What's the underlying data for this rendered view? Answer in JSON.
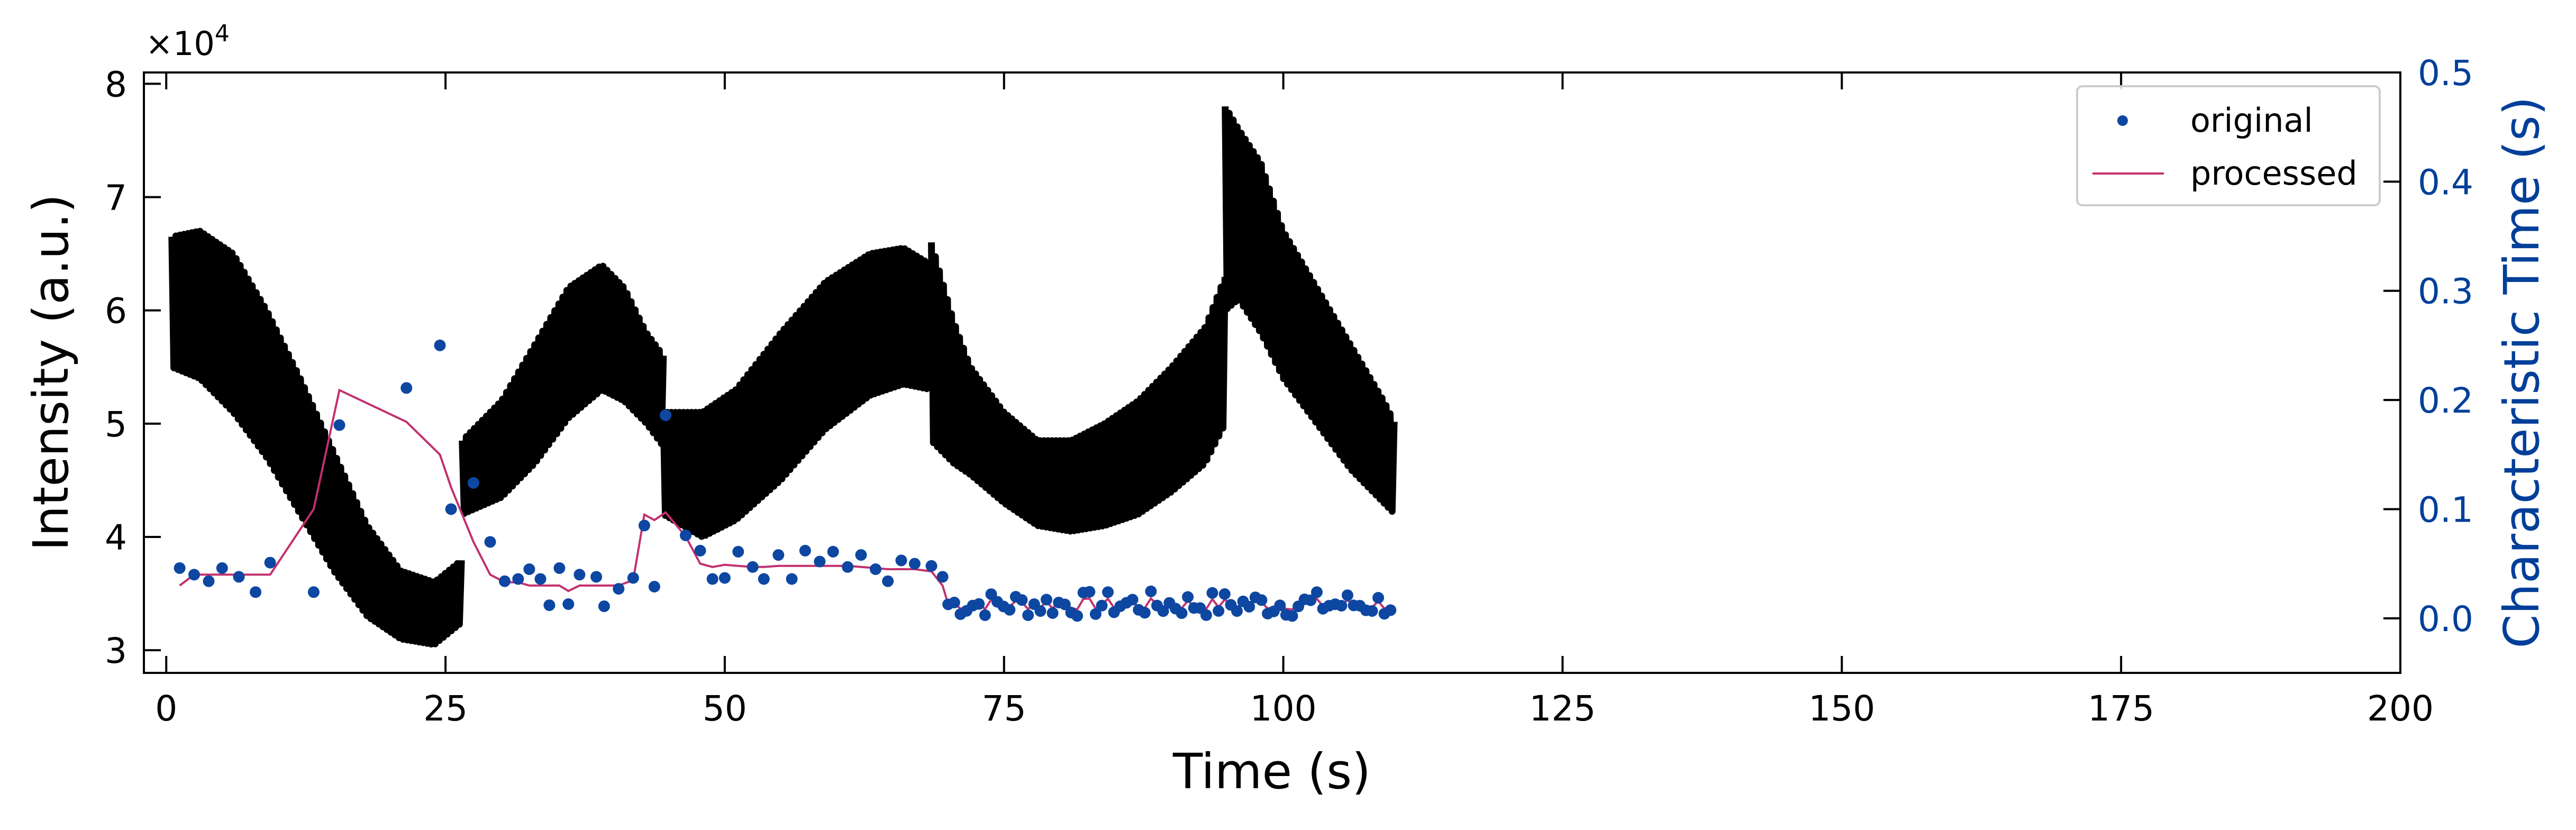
{
  "chart_data": {
    "type": "scatter",
    "xlabel": "Time (s)",
    "ylabel_left": "Intensity (a.u.)",
    "ylabel_right": "Characteristic Time (s)",
    "left_exponent_text": "×10",
    "left_exponent_power": "4",
    "xlim": [
      -2,
      200
    ],
    "ylim_left": [
      28000,
      81000
    ],
    "ylim_right": [
      -0.05,
      0.5
    ],
    "x_ticks": [
      "0",
      "25",
      "50",
      "75",
      "100",
      "125",
      "150",
      "175",
      "200"
    ],
    "y_left_ticks": [
      "3",
      "4",
      "5",
      "6",
      "7",
      "8"
    ],
    "y_right_ticks": [
      "0.0",
      "0.1",
      "0.2",
      "0.3",
      "0.4",
      "0.5"
    ],
    "legend_position": "top-right",
    "colors": {
      "intensity": "#000000",
      "original": "#0d47a1",
      "processed": "#c2306f",
      "right_axis": "#003f99"
    },
    "intensity_envelope": {
      "name": "",
      "period_s": 0.36,
      "segments": [
        {
          "t": [
            0.5,
            3,
            6,
            9,
            12,
            15,
            18,
            21,
            24,
            26.5
          ],
          "upper": [
            66500,
            67000,
            65000,
            60000,
            54000,
            47500,
            41000,
            37000,
            36000,
            38000
          ],
          "lower": [
            55000,
            54000,
            51000,
            47000,
            42000,
            37000,
            33000,
            31000,
            30500,
            32500
          ]
        },
        {
          "t": [
            26.5,
            30,
            33,
            36,
            39,
            41,
            43,
            44.5
          ],
          "upper": [
            48500,
            52000,
            57000,
            62000,
            64000,
            62000,
            58000,
            56000
          ],
          "lower": [
            42000,
            43500,
            46500,
            50500,
            53000,
            52000,
            50000,
            48000
          ]
        },
        {
          "t": [
            44.5,
            48,
            51,
            55,
            59,
            63,
            66,
            68.5
          ],
          "upper": [
            51000,
            51000,
            53000,
            58000,
            62500,
            65000,
            65500,
            64000
          ],
          "lower": [
            42000,
            40000,
            41500,
            45000,
            49500,
            52500,
            53500,
            53000
          ]
        },
        {
          "t": [
            68.5,
            70.5,
            72,
            75,
            78,
            81,
            84,
            87,
            90,
            93,
            94.8
          ],
          "upper": [
            66000,
            59000,
            55000,
            51000,
            48500,
            48500,
            50000,
            52000,
            55000,
            58500,
            63000
          ],
          "lower": [
            48500,
            46500,
            45500,
            43000,
            41000,
            40500,
            41000,
            42000,
            44000,
            46500,
            50000
          ]
        },
        {
          "t": [
            94.8,
            96,
            98,
            100,
            103,
            106,
            109,
            110
          ],
          "upper": [
            78000,
            76000,
            73000,
            67000,
            62000,
            57000,
            52000,
            50000
          ],
          "lower": [
            60000,
            61000,
            58000,
            54000,
            50000,
            46000,
            43000,
            42000
          ]
        }
      ]
    },
    "series": [
      {
        "name": "original",
        "marker": "dot",
        "axis": "right",
        "x": [
          1.2,
          2.5,
          3.8,
          5.0,
          6.5,
          8.0,
          9.3,
          13.2,
          15.5,
          21.5,
          24.5,
          25.5,
          27.5,
          29.0,
          30.3,
          31.5,
          32.5,
          33.5,
          34.3,
          35.2,
          36.0,
          37.0,
          38.5,
          39.2,
          40.5,
          41.8,
          42.8,
          43.7,
          44.7,
          46.5,
          47.8,
          48.9,
          50.0,
          51.2,
          52.5,
          53.5,
          54.8,
          56.0,
          57.2,
          58.5,
          59.7,
          61.0,
          62.2,
          63.5,
          64.6,
          65.8,
          67.0,
          68.5,
          69.5
        ],
        "y": [
          0.046,
          0.04,
          0.034,
          0.046,
          0.038,
          0.024,
          0.051,
          0.024,
          0.177,
          0.211,
          0.25,
          0.1,
          0.124,
          0.07,
          0.034,
          0.036,
          0.045,
          0.036,
          0.012,
          0.046,
          0.013,
          0.04,
          0.038,
          0.011,
          0.027,
          0.037,
          0.085,
          0.029,
          0.186,
          0.076,
          0.062,
          0.036,
          0.037,
          0.061,
          0.047,
          0.036,
          0.058,
          0.036,
          0.062,
          0.052,
          0.061,
          0.047,
          0.058,
          0.045,
          0.034,
          0.053,
          0.05,
          0.048,
          0.038
        ]
      },
      {
        "name": "processed",
        "marker": "line",
        "axis": "right",
        "x": [
          1.2,
          2.5,
          3.8,
          5.0,
          6.5,
          8.0,
          9.3,
          13.2,
          15.5,
          21.5,
          24.5,
          25.5,
          27.5,
          29.0,
          30.3,
          31.5,
          32.5,
          33.5,
          34.3,
          35.2,
          36.0,
          37.0,
          38.5,
          39.2,
          40.5,
          41.8,
          42.8,
          43.7,
          44.7,
          46.5,
          47.8,
          48.9,
          50.0,
          51.2,
          52.5,
          53.5,
          54.8,
          56.0,
          57.2,
          58.5,
          59.7,
          61.0,
          62.2,
          63.5,
          64.6,
          65.8,
          67.0,
          68.5,
          69.5
        ],
        "y": [
          0.03,
          0.04,
          0.04,
          0.04,
          0.04,
          0.04,
          0.04,
          0.1,
          0.209,
          0.18,
          0.15,
          0.12,
          0.07,
          0.04,
          0.033,
          0.033,
          0.03,
          0.03,
          0.03,
          0.03,
          0.025,
          0.03,
          0.03,
          0.03,
          0.03,
          0.035,
          0.095,
          0.09,
          0.097,
          0.075,
          0.05,
          0.047,
          0.049,
          0.048,
          0.047,
          0.047,
          0.048,
          0.048,
          0.048,
          0.048,
          0.048,
          0.048,
          0.047,
          0.046,
          0.045,
          0.045,
          0.045,
          0.043,
          0.03
        ]
      }
    ],
    "dense_tail": {
      "x_start": 70.0,
      "x_end": 110.0,
      "step": 0.55,
      "y_center": 0.013,
      "y_jitter": 0.012
    }
  }
}
